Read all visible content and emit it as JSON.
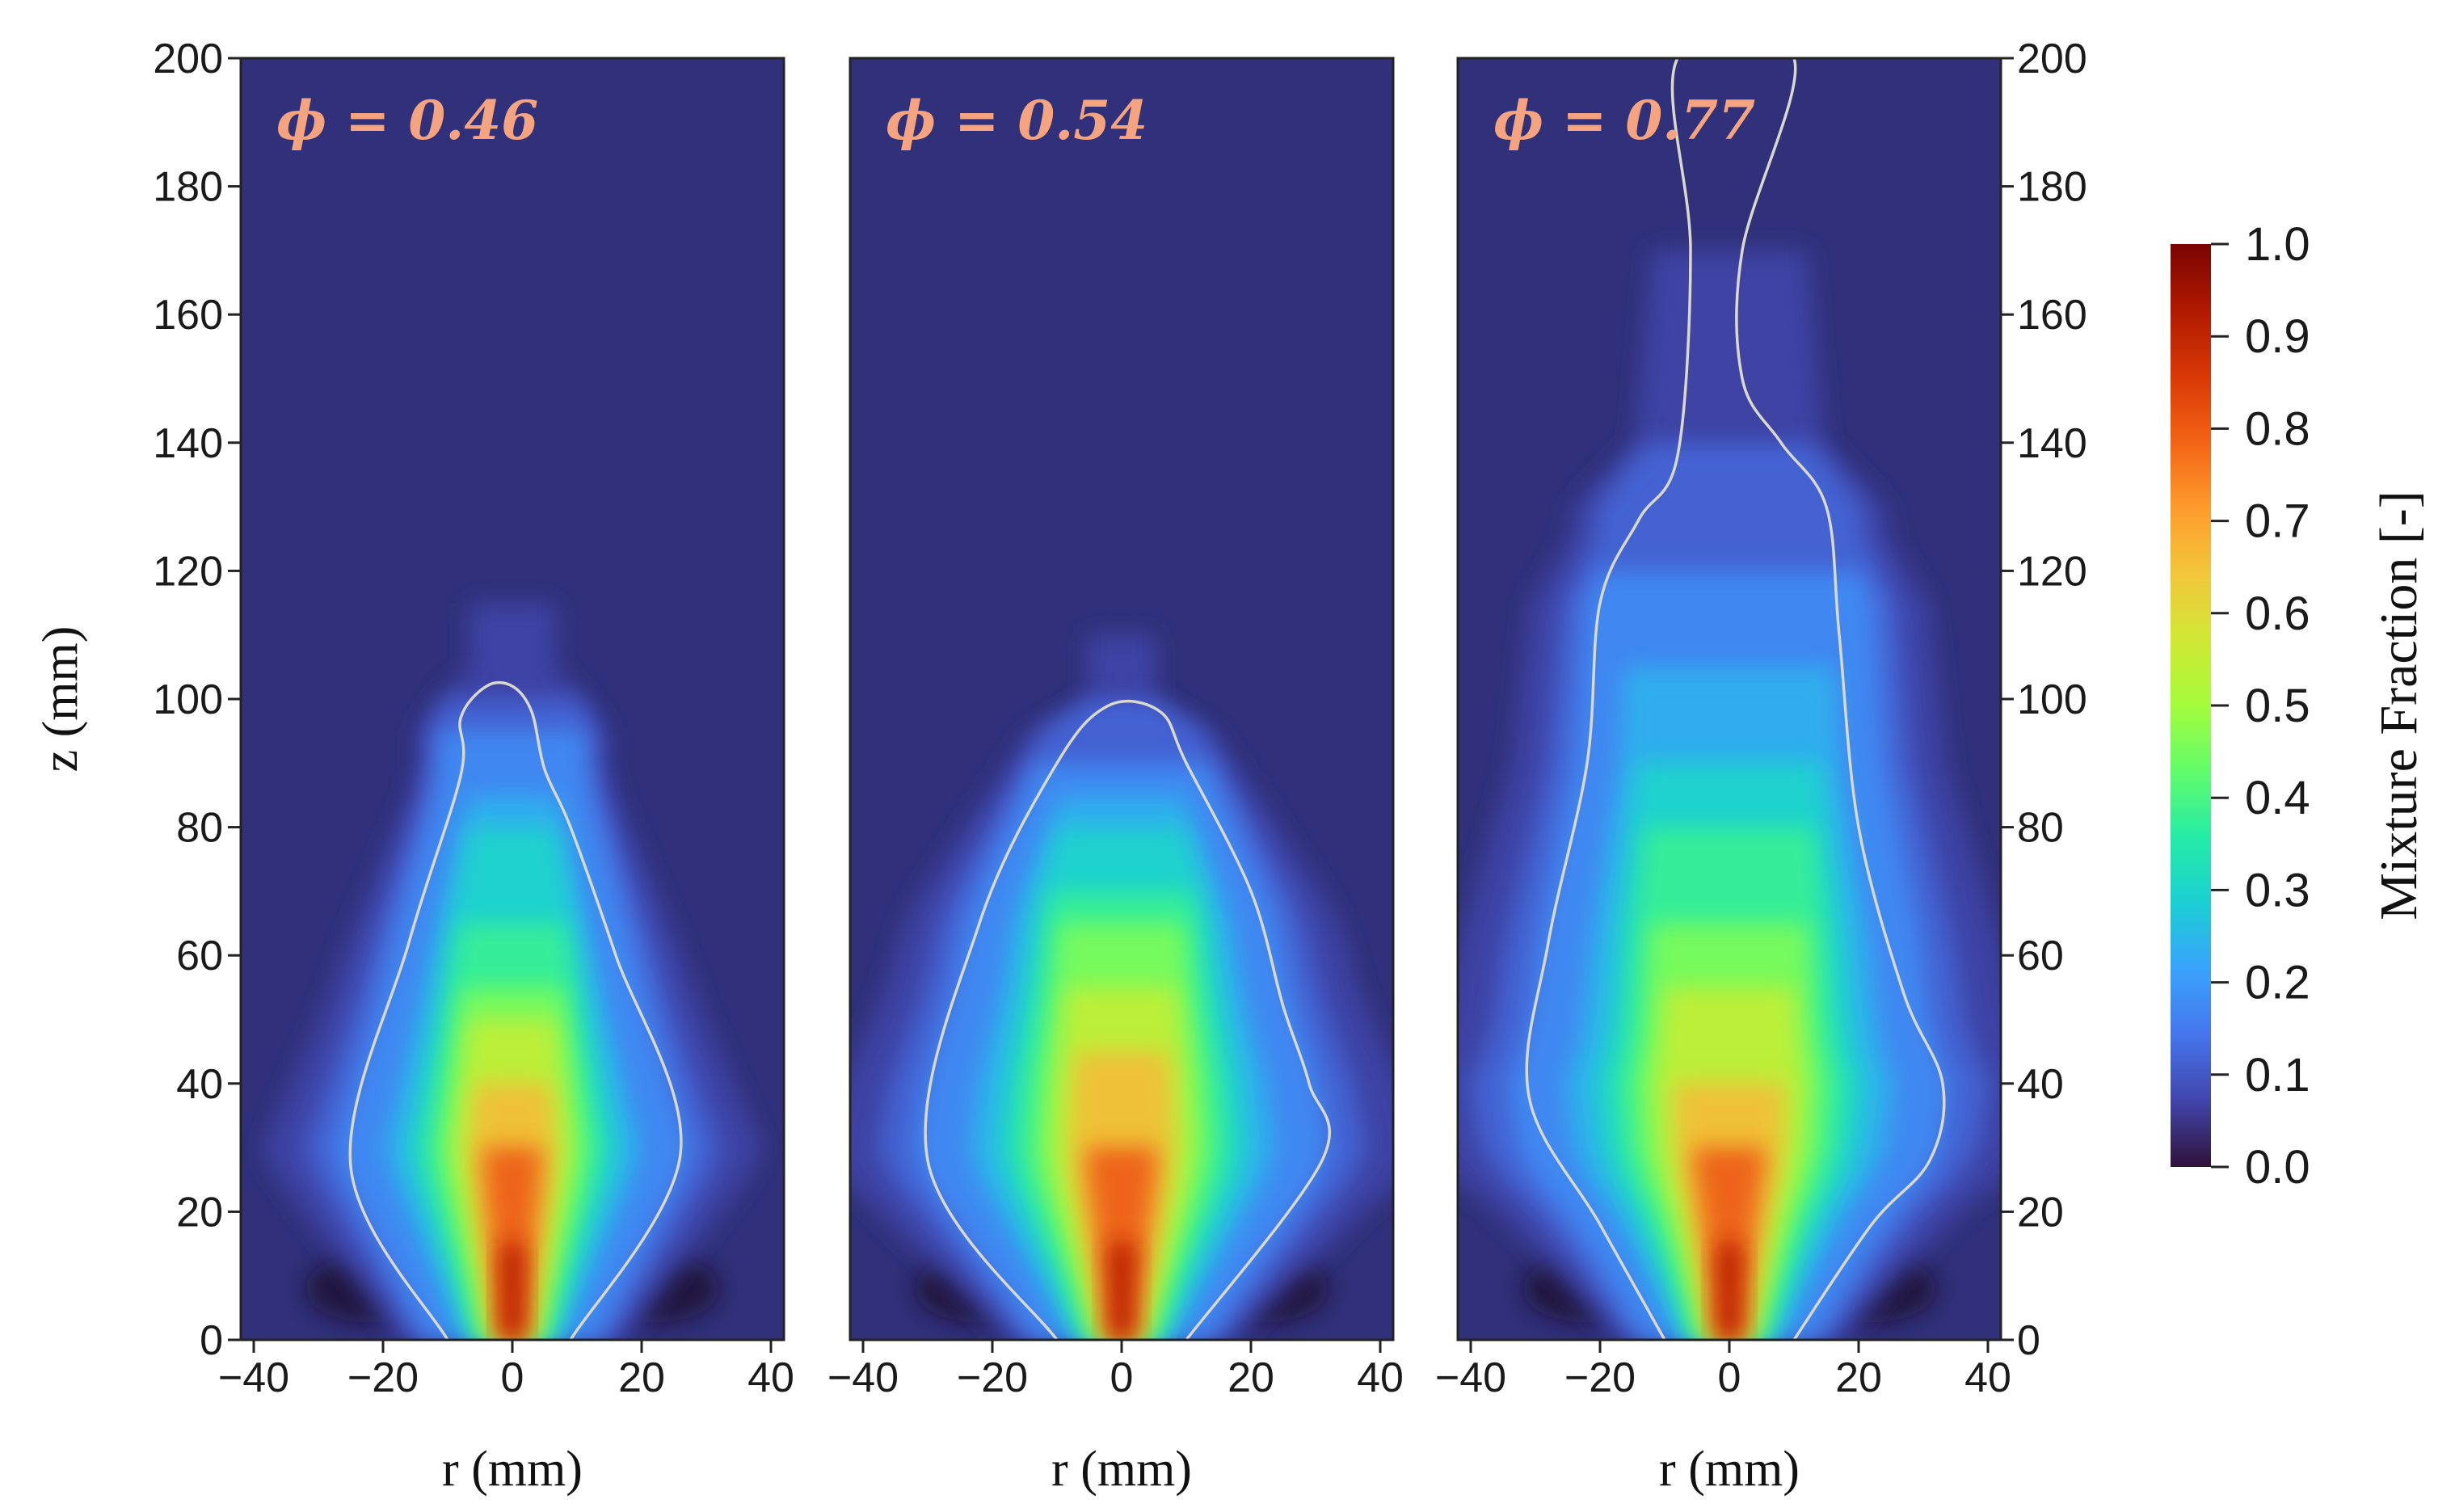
{
  "chart_data": {
    "type": "heatmap",
    "colormap": [
      "#30123b",
      "#4145ab",
      "#4675ed",
      "#39a2fc",
      "#1bcfd4",
      "#24eca6",
      "#61fc6c",
      "#a4fc3b",
      "#d1e834",
      "#f3c63a",
      "#fe9b2d",
      "#f36315",
      "#d93806",
      "#b11901",
      "#7a0402"
    ],
    "background_color": "#30317a",
    "contour_color": "#d8d8cc",
    "panels": [
      {
        "label": "ϕ =  0.46",
        "label_color": "#f6a37f",
        "xlabel": "r (mm)",
        "ylabel": "z (mm)",
        "xlim": [
          -42,
          42
        ],
        "ylim": [
          0,
          200
        ],
        "xticks": [
          "−40",
          "−20",
          "0",
          "20",
          "40"
        ],
        "yticks": [
          "0",
          "20",
          "40",
          "60",
          "80",
          "100",
          "120",
          "140",
          "160",
          "180",
          "200"
        ],
        "yaxis_side": "left",
        "core": [
          [
            0,
            0.97
          ],
          [
            10,
            0.95
          ],
          [
            20,
            0.9
          ],
          [
            30,
            0.8
          ],
          [
            40,
            0.68
          ],
          [
            50,
            0.55
          ],
          [
            60,
            0.45
          ],
          [
            70,
            0.37
          ],
          [
            80,
            0.3
          ],
          [
            90,
            0.22
          ],
          [
            100,
            0.14
          ],
          [
            110,
            0.08
          ],
          [
            130,
            0.04
          ],
          [
            160,
            0.01
          ]
        ],
        "stoichiometric_contour": [
          [
            -10,
            0
          ],
          [
            -25,
            27
          ],
          [
            -16,
            62
          ],
          [
            -8,
            88
          ],
          [
            -8,
            97
          ],
          [
            -4,
            102
          ],
          [
            0,
            102
          ],
          [
            3,
            98
          ],
          [
            5,
            89
          ],
          [
            9,
            80
          ],
          [
            16,
            60
          ],
          [
            26,
            29
          ],
          [
            9,
            0
          ]
        ]
      },
      {
        "label": "ϕ =  0.54",
        "label_color": "#f6a37f",
        "xlabel": "r (mm)",
        "ylabel": "",
        "xlim": [
          -42,
          42
        ],
        "ylim": [
          0,
          200
        ],
        "xticks": [
          "−40",
          "−20",
          "0",
          "20",
          "40"
        ],
        "yticks": [],
        "yaxis_side": "none",
        "core": [
          [
            0,
            0.97
          ],
          [
            10,
            0.95
          ],
          [
            20,
            0.9
          ],
          [
            30,
            0.82
          ],
          [
            40,
            0.72
          ],
          [
            50,
            0.62
          ],
          [
            60,
            0.52
          ],
          [
            70,
            0.42
          ],
          [
            80,
            0.33
          ],
          [
            90,
            0.22
          ],
          [
            100,
            0.12
          ],
          [
            110,
            0.07
          ],
          [
            130,
            0.03
          ],
          [
            160,
            0.01
          ]
        ],
        "stoichiometric_contour": [
          [
            -10,
            0
          ],
          [
            -30,
            28
          ],
          [
            -22,
            65
          ],
          [
            -10,
            90
          ],
          [
            -2,
            99
          ],
          [
            6,
            98
          ],
          [
            10,
            90
          ],
          [
            20,
            70
          ],
          [
            25,
            52
          ],
          [
            29,
            40
          ],
          [
            31,
            28
          ],
          [
            10,
            0
          ]
        ]
      },
      {
        "label": "ϕ =  0.77",
        "label_color": "#f6a37f",
        "xlabel": "r (mm)",
        "ylabel": "",
        "xlim": [
          -42,
          42
        ],
        "ylim": [
          0,
          200
        ],
        "xticks": [
          "−40",
          "−20",
          "0",
          "20",
          "40"
        ],
        "yticks": [
          "0",
          "20",
          "40",
          "60",
          "80",
          "100",
          "120",
          "140",
          "160",
          "180",
          "200"
        ],
        "yaxis_side": "right",
        "core": [
          [
            0,
            0.98
          ],
          [
            10,
            0.96
          ],
          [
            20,
            0.9
          ],
          [
            30,
            0.82
          ],
          [
            40,
            0.72
          ],
          [
            50,
            0.6
          ],
          [
            60,
            0.5
          ],
          [
            70,
            0.45
          ],
          [
            80,
            0.38
          ],
          [
            90,
            0.32
          ],
          [
            100,
            0.27
          ],
          [
            110,
            0.22
          ],
          [
            130,
            0.15
          ],
          [
            160,
            0.08
          ],
          [
            200,
            0.05
          ]
        ],
        "stoichiometric_contour": [
          [
            -10,
            0
          ],
          [
            -20,
            18
          ],
          [
            -31,
            38
          ],
          [
            -28,
            62
          ],
          [
            -22,
            90
          ],
          [
            -20,
            115
          ],
          [
            -14,
            128
          ],
          [
            -8,
            138
          ],
          [
            -6,
            170
          ],
          [
            -8,
            200
          ],
          [
            10,
            200
          ],
          [
            2,
            170
          ],
          [
            2,
            150
          ],
          [
            8,
            140
          ],
          [
            15,
            130
          ],
          [
            17,
            110
          ],
          [
            20,
            80
          ],
          [
            27,
            54
          ],
          [
            33,
            40
          ],
          [
            31,
            28
          ],
          [
            22,
            18
          ],
          [
            10,
            0
          ]
        ]
      }
    ],
    "colorbar": {
      "title": "Mixture Fraction [-]",
      "range": [
        0.0,
        1.0
      ],
      "ticks": [
        "0.0",
        "0.1",
        "0.2",
        "0.3",
        "0.4",
        "0.5",
        "0.6",
        "0.7",
        "0.8",
        "0.9",
        "1.0"
      ]
    }
  }
}
